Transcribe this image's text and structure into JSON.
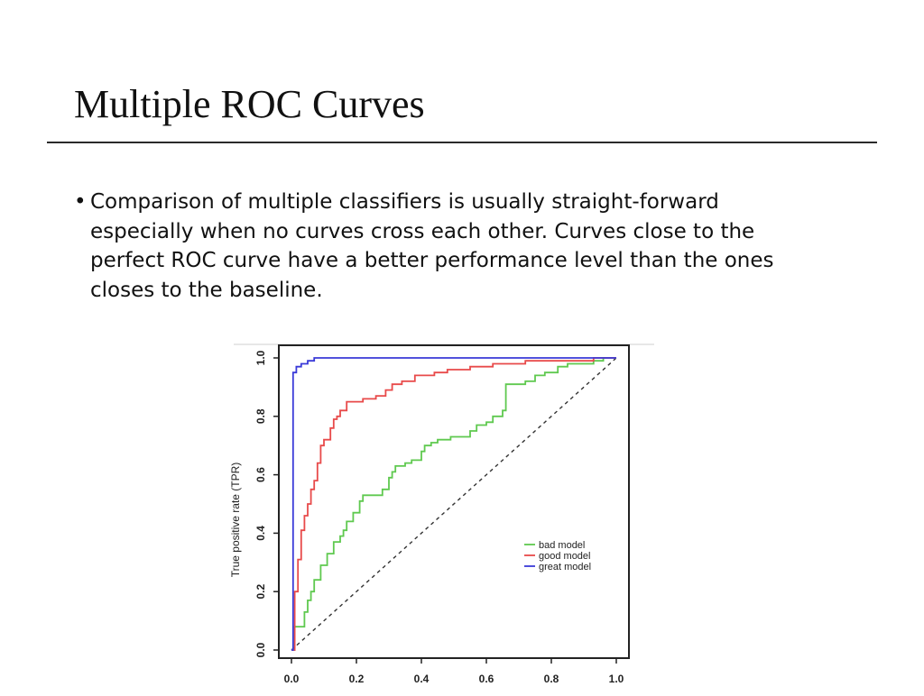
{
  "slide": {
    "title": "Multiple ROC Curves",
    "bullets": [
      {
        "marker": "•",
        "text": "Comparison of multiple classifiers is usually straight-forward especially when no curves cross each other. Curves close to the perfect ROC curve have a better performance level than the ones closes to the baseline."
      }
    ]
  },
  "chart_data": {
    "type": "line",
    "title": "",
    "xlabel": "",
    "ylabel": "True positive rate (TPR)",
    "xlim": [
      0,
      1
    ],
    "ylim": [
      0,
      1
    ],
    "xticks": [
      "0.0",
      "0.2",
      "0.4",
      "0.6",
      "0.8",
      "1.0"
    ],
    "yticks": [
      "0.0",
      "0.2",
      "0.4",
      "0.6",
      "0.8",
      "1.0"
    ],
    "grid": false,
    "legend_position": "bottom-right",
    "baseline": {
      "style": "dashed",
      "color": "#333333",
      "points": [
        [
          0,
          0
        ],
        [
          1,
          1
        ]
      ]
    },
    "series": [
      {
        "name": "bad model",
        "color": "#5fc94f",
        "points": [
          [
            0,
            0
          ],
          [
            0.01,
            0
          ],
          [
            0.01,
            0.08
          ],
          [
            0.04,
            0.08
          ],
          [
            0.04,
            0.13
          ],
          [
            0.05,
            0.13
          ],
          [
            0.05,
            0.17
          ],
          [
            0.06,
            0.17
          ],
          [
            0.06,
            0.2
          ],
          [
            0.07,
            0.2
          ],
          [
            0.07,
            0.24
          ],
          [
            0.09,
            0.24
          ],
          [
            0.09,
            0.29
          ],
          [
            0.11,
            0.29
          ],
          [
            0.11,
            0.33
          ],
          [
            0.13,
            0.33
          ],
          [
            0.13,
            0.37
          ],
          [
            0.15,
            0.37
          ],
          [
            0.15,
            0.39
          ],
          [
            0.16,
            0.39
          ],
          [
            0.16,
            0.41
          ],
          [
            0.17,
            0.41
          ],
          [
            0.17,
            0.44
          ],
          [
            0.19,
            0.44
          ],
          [
            0.19,
            0.47
          ],
          [
            0.21,
            0.47
          ],
          [
            0.21,
            0.51
          ],
          [
            0.22,
            0.51
          ],
          [
            0.22,
            0.53
          ],
          [
            0.28,
            0.53
          ],
          [
            0.28,
            0.55
          ],
          [
            0.3,
            0.55
          ],
          [
            0.3,
            0.59
          ],
          [
            0.31,
            0.59
          ],
          [
            0.31,
            0.61
          ],
          [
            0.32,
            0.61
          ],
          [
            0.32,
            0.63
          ],
          [
            0.35,
            0.63
          ],
          [
            0.35,
            0.64
          ],
          [
            0.37,
            0.64
          ],
          [
            0.37,
            0.65
          ],
          [
            0.4,
            0.65
          ],
          [
            0.4,
            0.68
          ],
          [
            0.41,
            0.68
          ],
          [
            0.41,
            0.7
          ],
          [
            0.43,
            0.7
          ],
          [
            0.43,
            0.71
          ],
          [
            0.45,
            0.71
          ],
          [
            0.45,
            0.72
          ],
          [
            0.49,
            0.72
          ],
          [
            0.49,
            0.73
          ],
          [
            0.55,
            0.73
          ],
          [
            0.55,
            0.75
          ],
          [
            0.57,
            0.75
          ],
          [
            0.57,
            0.77
          ],
          [
            0.6,
            0.77
          ],
          [
            0.6,
            0.78
          ],
          [
            0.62,
            0.78
          ],
          [
            0.62,
            0.8
          ],
          [
            0.65,
            0.8
          ],
          [
            0.65,
            0.82
          ],
          [
            0.66,
            0.82
          ],
          [
            0.66,
            0.91
          ],
          [
            0.72,
            0.91
          ],
          [
            0.72,
            0.92
          ],
          [
            0.75,
            0.92
          ],
          [
            0.75,
            0.94
          ],
          [
            0.78,
            0.94
          ],
          [
            0.78,
            0.95
          ],
          [
            0.82,
            0.95
          ],
          [
            0.82,
            0.97
          ],
          [
            0.85,
            0.97
          ],
          [
            0.85,
            0.98
          ],
          [
            0.93,
            0.98
          ],
          [
            0.93,
            0.99
          ],
          [
            0.96,
            0.99
          ],
          [
            0.96,
            1.0
          ],
          [
            1.0,
            1.0
          ]
        ]
      },
      {
        "name": "good model",
        "color": "#e84a4a",
        "points": [
          [
            0,
            0
          ],
          [
            0.01,
            0
          ],
          [
            0.01,
            0.2
          ],
          [
            0.02,
            0.2
          ],
          [
            0.02,
            0.31
          ],
          [
            0.03,
            0.31
          ],
          [
            0.03,
            0.41
          ],
          [
            0.04,
            0.41
          ],
          [
            0.04,
            0.46
          ],
          [
            0.05,
            0.46
          ],
          [
            0.05,
            0.5
          ],
          [
            0.06,
            0.5
          ],
          [
            0.06,
            0.55
          ],
          [
            0.07,
            0.55
          ],
          [
            0.07,
            0.58
          ],
          [
            0.08,
            0.58
          ],
          [
            0.08,
            0.64
          ],
          [
            0.09,
            0.64
          ],
          [
            0.09,
            0.7
          ],
          [
            0.1,
            0.7
          ],
          [
            0.1,
            0.72
          ],
          [
            0.12,
            0.72
          ],
          [
            0.12,
            0.76
          ],
          [
            0.13,
            0.76
          ],
          [
            0.13,
            0.79
          ],
          [
            0.14,
            0.79
          ],
          [
            0.14,
            0.8
          ],
          [
            0.15,
            0.8
          ],
          [
            0.15,
            0.82
          ],
          [
            0.17,
            0.82
          ],
          [
            0.17,
            0.85
          ],
          [
            0.22,
            0.85
          ],
          [
            0.22,
            0.86
          ],
          [
            0.26,
            0.86
          ],
          [
            0.26,
            0.87
          ],
          [
            0.29,
            0.87
          ],
          [
            0.29,
            0.89
          ],
          [
            0.31,
            0.89
          ],
          [
            0.31,
            0.91
          ],
          [
            0.34,
            0.91
          ],
          [
            0.34,
            0.92
          ],
          [
            0.38,
            0.92
          ],
          [
            0.38,
            0.94
          ],
          [
            0.44,
            0.94
          ],
          [
            0.44,
            0.95
          ],
          [
            0.48,
            0.95
          ],
          [
            0.48,
            0.96
          ],
          [
            0.55,
            0.96
          ],
          [
            0.55,
            0.97
          ],
          [
            0.62,
            0.97
          ],
          [
            0.62,
            0.98
          ],
          [
            0.72,
            0.98
          ],
          [
            0.72,
            0.99
          ],
          [
            0.93,
            0.99
          ],
          [
            0.93,
            1.0
          ],
          [
            1.0,
            1.0
          ]
        ]
      },
      {
        "name": "great model",
        "color": "#3a3ad8",
        "points": [
          [
            0,
            0
          ],
          [
            0.005,
            0
          ],
          [
            0.005,
            0.95
          ],
          [
            0.015,
            0.95
          ],
          [
            0.015,
            0.97
          ],
          [
            0.03,
            0.97
          ],
          [
            0.03,
            0.98
          ],
          [
            0.05,
            0.98
          ],
          [
            0.05,
            0.99
          ],
          [
            0.07,
            0.99
          ],
          [
            0.07,
            1.0
          ],
          [
            1.0,
            1.0
          ]
        ]
      }
    ]
  }
}
